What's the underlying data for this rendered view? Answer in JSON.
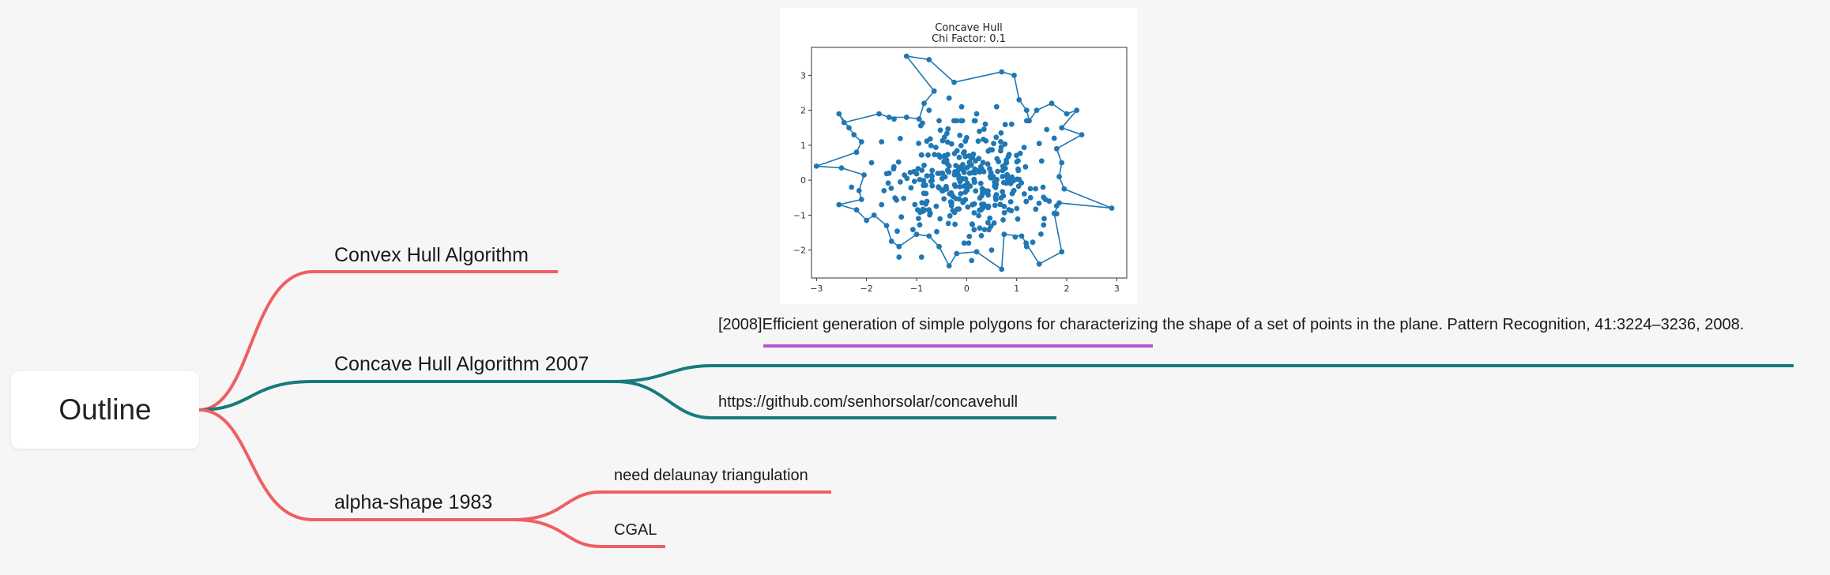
{
  "mindmap": {
    "root": "Outline",
    "branches": [
      {
        "label": "Convex Hull Algorithm",
        "color": "#ee5f62"
      },
      {
        "label": "Concave Hull Algorithm 2007",
        "color": "#177a7c",
        "children": [
          {
            "label": "[2008]Efficient generation of simple polygons for characterizing the shape of a set of points in the plane. Pattern Recognition, 41:3224–3236, 2008.",
            "highlight_color": "#b755c8"
          },
          {
            "label": "https://github.com/senhorsolar/concavehull"
          }
        ]
      },
      {
        "label": "alpha-shape 1983",
        "color": "#ee5f62",
        "children": [
          {
            "label": "need delaunay triangulation"
          },
          {
            "label": "CGAL"
          }
        ]
      }
    ]
  },
  "chart_data": {
    "type": "scatter",
    "title": "Concave Hull",
    "subtitle": "Chi Factor: 0.1",
    "xlim": [
      -3.1,
      3.2
    ],
    "ylim": [
      -2.8,
      3.8
    ],
    "xticks": [
      "−3",
      "−2",
      "−1",
      "0",
      "1",
      "2",
      "3"
    ],
    "xtick_values": [
      -3,
      -2,
      -1,
      0,
      1,
      2,
      3
    ],
    "yticks": [
      "−2",
      "−1",
      "0",
      "1",
      "2",
      "3"
    ],
    "ytick_values": [
      -2,
      -1,
      0,
      1,
      2,
      3
    ],
    "color": "#1f77b4",
    "hull": [
      [
        -1.2,
        3.55
      ],
      [
        -0.75,
        3.45
      ],
      [
        -0.25,
        2.8
      ],
      [
        0.7,
        3.1
      ],
      [
        0.95,
        3.0
      ],
      [
        1.05,
        2.3
      ],
      [
        1.2,
        2.0
      ],
      [
        1.25,
        1.7
      ],
      [
        1.4,
        2.0
      ],
      [
        1.7,
        2.2
      ],
      [
        2.0,
        1.9
      ],
      [
        2.2,
        2.0
      ],
      [
        1.9,
        1.5
      ],
      [
        2.3,
        1.3
      ],
      [
        1.8,
        0.9
      ],
      [
        1.9,
        0.5
      ],
      [
        1.85,
        0.1
      ],
      [
        1.95,
        -0.25
      ],
      [
        2.9,
        -0.8
      ],
      [
        1.85,
        -0.65
      ],
      [
        1.75,
        -0.95
      ],
      [
        1.9,
        -2.05
      ],
      [
        1.45,
        -2.4
      ],
      [
        1.1,
        -1.6
      ],
      [
        0.75,
        -1.55
      ],
      [
        0.7,
        -2.55
      ],
      [
        0.2,
        -2.05
      ],
      [
        -0.2,
        -2.1
      ],
      [
        -0.35,
        -2.45
      ],
      [
        -0.55,
        -1.9
      ],
      [
        -0.75,
        -1.6
      ],
      [
        -1.0,
        -1.55
      ],
      [
        -1.35,
        -1.9
      ],
      [
        -1.5,
        -1.75
      ],
      [
        -1.6,
        -1.3
      ],
      [
        -1.85,
        -1.0
      ],
      [
        -2.0,
        -1.15
      ],
      [
        -2.2,
        -0.85
      ],
      [
        -2.55,
        -0.7
      ],
      [
        -2.1,
        -0.55
      ],
      [
        -2.15,
        -0.3
      ],
      [
        -2.05,
        0.15
      ],
      [
        -2.5,
        0.35
      ],
      [
        -3.0,
        0.4
      ],
      [
        -2.2,
        0.8
      ],
      [
        -2.1,
        1.1
      ],
      [
        -2.25,
        1.3
      ],
      [
        -2.55,
        1.9
      ],
      [
        -2.45,
        1.65
      ],
      [
        -1.75,
        1.9
      ],
      [
        -1.55,
        1.8
      ],
      [
        -1.2,
        1.8
      ],
      [
        -0.95,
        1.75
      ],
      [
        -0.85,
        2.2
      ],
      [
        -0.65,
        2.55
      ],
      [
        -1.2,
        3.55
      ]
    ],
    "extra_points": [
      [
        -1.45,
        1.75
      ],
      [
        -0.75,
        2.0
      ],
      [
        -0.35,
        2.35
      ],
      [
        -0.1,
        2.1
      ],
      [
        0.6,
        2.1
      ],
      [
        0.2,
        1.9
      ],
      [
        -1.35,
        -2.2
      ],
      [
        -0.9,
        -2.2
      ],
      [
        0.1,
        -2.3
      ],
      [
        -0.05,
        -1.8
      ],
      [
        0.5,
        -2.0
      ],
      [
        1.2,
        -1.9
      ],
      [
        1.55,
        -1.1
      ],
      [
        1.65,
        -0.6
      ],
      [
        1.5,
        0.55
      ],
      [
        1.45,
        1.05
      ],
      [
        1.6,
        1.45
      ],
      [
        0.9,
        1.6
      ],
      [
        -2.3,
        -0.2
      ],
      [
        -1.9,
        0.5
      ],
      [
        -1.7,
        1.1
      ],
      [
        -1.65,
        -0.3
      ],
      [
        -1.55,
        0.2
      ],
      [
        -1.7,
        -0.7
      ],
      [
        -2.35,
        1.5
      ],
      [
        1.75,
        1.2
      ]
    ],
    "cloud": {
      "n": 330,
      "sigma": 0.75
    }
  }
}
